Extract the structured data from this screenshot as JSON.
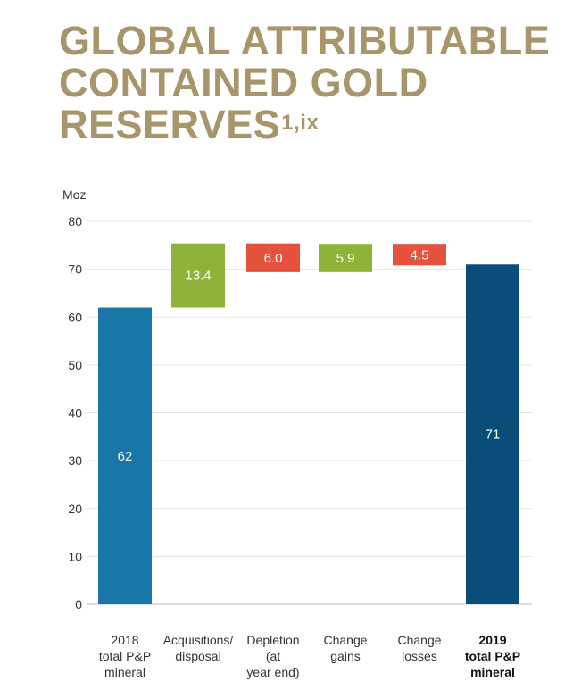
{
  "title": {
    "line1": "GLOBAL ATTRIBUTABLE",
    "line2": "CONTAINED GOLD",
    "line3": "RESERVES",
    "superscript": "1,ix"
  },
  "chart_data": {
    "type": "waterfall",
    "ylabel": "Moz",
    "ylim": [
      0,
      80
    ],
    "yticks": [
      0,
      10,
      20,
      30,
      40,
      50,
      60,
      70,
      80
    ],
    "grid": true,
    "categories": [
      {
        "lines": [
          "2018",
          "total P&P",
          "mineral"
        ],
        "bold": false
      },
      {
        "lines": [
          "Acquisitions/",
          "disposal"
        ],
        "bold": false
      },
      {
        "lines": [
          "Depletion",
          "(at",
          "year end)"
        ],
        "bold": false
      },
      {
        "lines": [
          "Change",
          "gains"
        ],
        "bold": false
      },
      {
        "lines": [
          "Change",
          "losses"
        ],
        "bold": false
      },
      {
        "lines": [
          "2019",
          "total P&P",
          "mineral"
        ],
        "bold": true
      }
    ],
    "bars": [
      {
        "label": "62",
        "start": 0,
        "end": 62,
        "color": "#1a75a8"
      },
      {
        "label": "13.4",
        "start": 62,
        "end": 75.4,
        "color": "#8fb339"
      },
      {
        "label": "6.0",
        "start": 69.4,
        "end": 75.4,
        "color": "#e4513c"
      },
      {
        "label": "5.9",
        "start": 69.4,
        "end": 75.3,
        "color": "#8fb339"
      },
      {
        "label": "4.5",
        "start": 70.8,
        "end": 75.3,
        "color": "#e4513c"
      },
      {
        "label": "71",
        "start": 0,
        "end": 71,
        "color": "#0a4d78"
      }
    ]
  }
}
